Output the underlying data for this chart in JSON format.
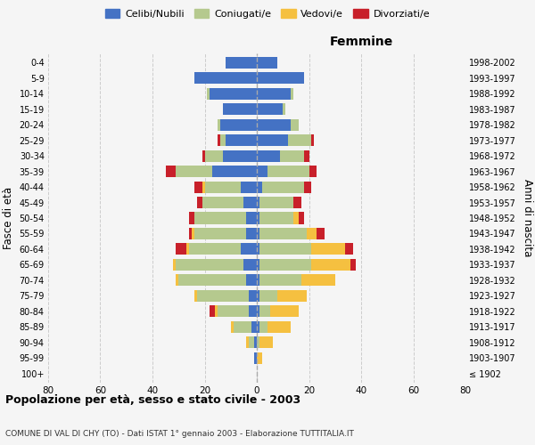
{
  "age_groups": [
    "100+",
    "95-99",
    "90-94",
    "85-89",
    "80-84",
    "75-79",
    "70-74",
    "65-69",
    "60-64",
    "55-59",
    "50-54",
    "45-49",
    "40-44",
    "35-39",
    "30-34",
    "25-29",
    "20-24",
    "15-19",
    "10-14",
    "5-9",
    "0-4"
  ],
  "birth_years": [
    "≤ 1902",
    "1903-1907",
    "1908-1912",
    "1913-1917",
    "1918-1922",
    "1923-1927",
    "1928-1932",
    "1933-1937",
    "1938-1942",
    "1943-1947",
    "1948-1952",
    "1953-1957",
    "1958-1962",
    "1963-1967",
    "1968-1972",
    "1973-1977",
    "1978-1982",
    "1983-1987",
    "1988-1992",
    "1993-1997",
    "1998-2002"
  ],
  "males": {
    "celibi": [
      0,
      1,
      1,
      2,
      3,
      3,
      4,
      5,
      6,
      4,
      4,
      5,
      6,
      17,
      13,
      12,
      14,
      13,
      18,
      24,
      12
    ],
    "coniugati": [
      0,
      0,
      2,
      7,
      12,
      20,
      26,
      26,
      20,
      20,
      20,
      16,
      14,
      14,
      7,
      2,
      1,
      0,
      1,
      0,
      0
    ],
    "vedovi": [
      0,
      0,
      1,
      1,
      1,
      1,
      1,
      1,
      1,
      1,
      0,
      0,
      1,
      0,
      0,
      0,
      0,
      0,
      0,
      0,
      0
    ],
    "divorziati": [
      0,
      0,
      0,
      0,
      2,
      0,
      0,
      0,
      4,
      1,
      2,
      2,
      3,
      4,
      1,
      1,
      0,
      0,
      0,
      0,
      0
    ]
  },
  "females": {
    "nubili": [
      0,
      0,
      0,
      1,
      1,
      1,
      1,
      1,
      1,
      1,
      1,
      1,
      2,
      4,
      9,
      12,
      13,
      10,
      13,
      18,
      8
    ],
    "coniugate": [
      0,
      0,
      1,
      3,
      4,
      7,
      16,
      20,
      20,
      18,
      13,
      13,
      16,
      16,
      9,
      9,
      3,
      1,
      1,
      0,
      0
    ],
    "vedove": [
      0,
      2,
      5,
      9,
      11,
      11,
      13,
      15,
      13,
      4,
      2,
      0,
      0,
      0,
      0,
      0,
      0,
      0,
      0,
      0,
      0
    ],
    "divorziate": [
      0,
      0,
      0,
      0,
      0,
      0,
      0,
      2,
      3,
      3,
      2,
      3,
      3,
      3,
      2,
      1,
      0,
      0,
      0,
      0,
      0
    ]
  },
  "colors": {
    "celibi": "#4472C4",
    "coniugati": "#b5c98e",
    "vedovi": "#f5c040",
    "divorziati": "#c8202a"
  },
  "title": "Popolazione per età, sesso e stato civile - 2003",
  "subtitle": "COMUNE DI VAL DI CHY (TO) - Dati ISTAT 1° gennaio 2003 - Elaborazione TUTTITALIA.IT",
  "xlabel_right": "Femmine",
  "ylabel_left": "Fasce di età",
  "ylabel_right": "Anni di nascita",
  "xlim": 80,
  "bg_color": "#f5f5f5",
  "grid_color": "#cccccc"
}
